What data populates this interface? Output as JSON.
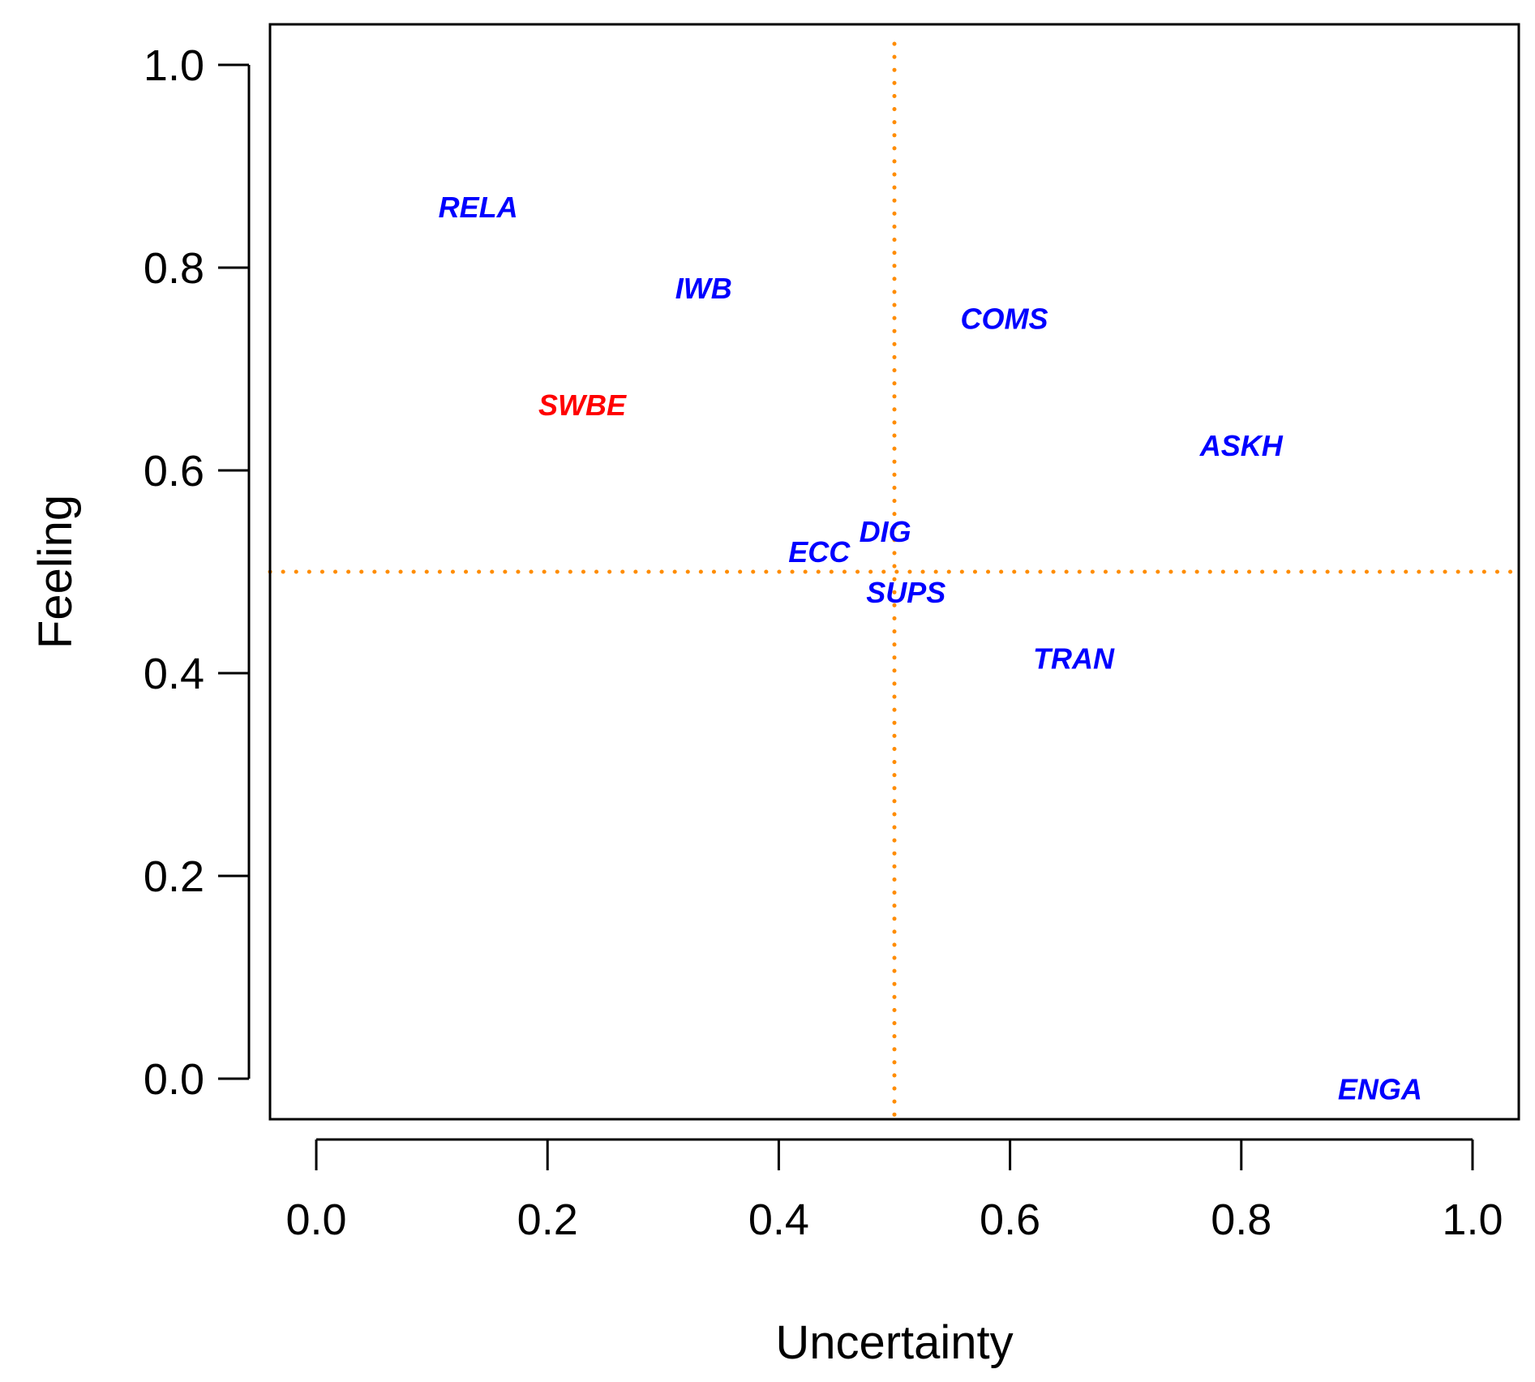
{
  "chart_data": {
    "type": "scatter",
    "title": "",
    "xlabel": "Uncertainty",
    "ylabel": "Feeling",
    "xlim": [
      -0.04,
      1.04
    ],
    "ylim": [
      -0.04,
      1.04
    ],
    "xticks": [
      "0.0",
      "0.2",
      "0.4",
      "0.6",
      "0.8",
      "1.0"
    ],
    "yticks": [
      "0.0",
      "0.2",
      "0.4",
      "0.6",
      "0.8",
      "1.0"
    ],
    "grid": false,
    "reference_lines": {
      "x": 0.5,
      "y": 0.5,
      "color": "#ff8c00",
      "style": "dotted"
    },
    "points": [
      {
        "label": "RELA",
        "x": 0.14,
        "y": 0.86,
        "color": "#0000ff"
      },
      {
        "label": "IWB",
        "x": 0.335,
        "y": 0.78,
        "color": "#0000ff"
      },
      {
        "label": "SWBE",
        "x": 0.23,
        "y": 0.665,
        "color": "#ff0000"
      },
      {
        "label": "COMS",
        "x": 0.595,
        "y": 0.75,
        "color": "#0000ff"
      },
      {
        "label": "ASKH",
        "x": 0.8,
        "y": 0.625,
        "color": "#0000ff"
      },
      {
        "label": "ECC",
        "x": 0.435,
        "y": 0.52,
        "color": "#0000ff"
      },
      {
        "label": "DIG",
        "x": 0.492,
        "y": 0.54,
        "color": "#0000ff"
      },
      {
        "label": "SUPS",
        "x": 0.51,
        "y": 0.48,
        "color": "#0000ff"
      },
      {
        "label": "TRAN",
        "x": 0.655,
        "y": 0.415,
        "color": "#0000ff"
      },
      {
        "label": "ENGA",
        "x": 0.92,
        "y": -0.01,
        "color": "#0000ff"
      }
    ]
  }
}
